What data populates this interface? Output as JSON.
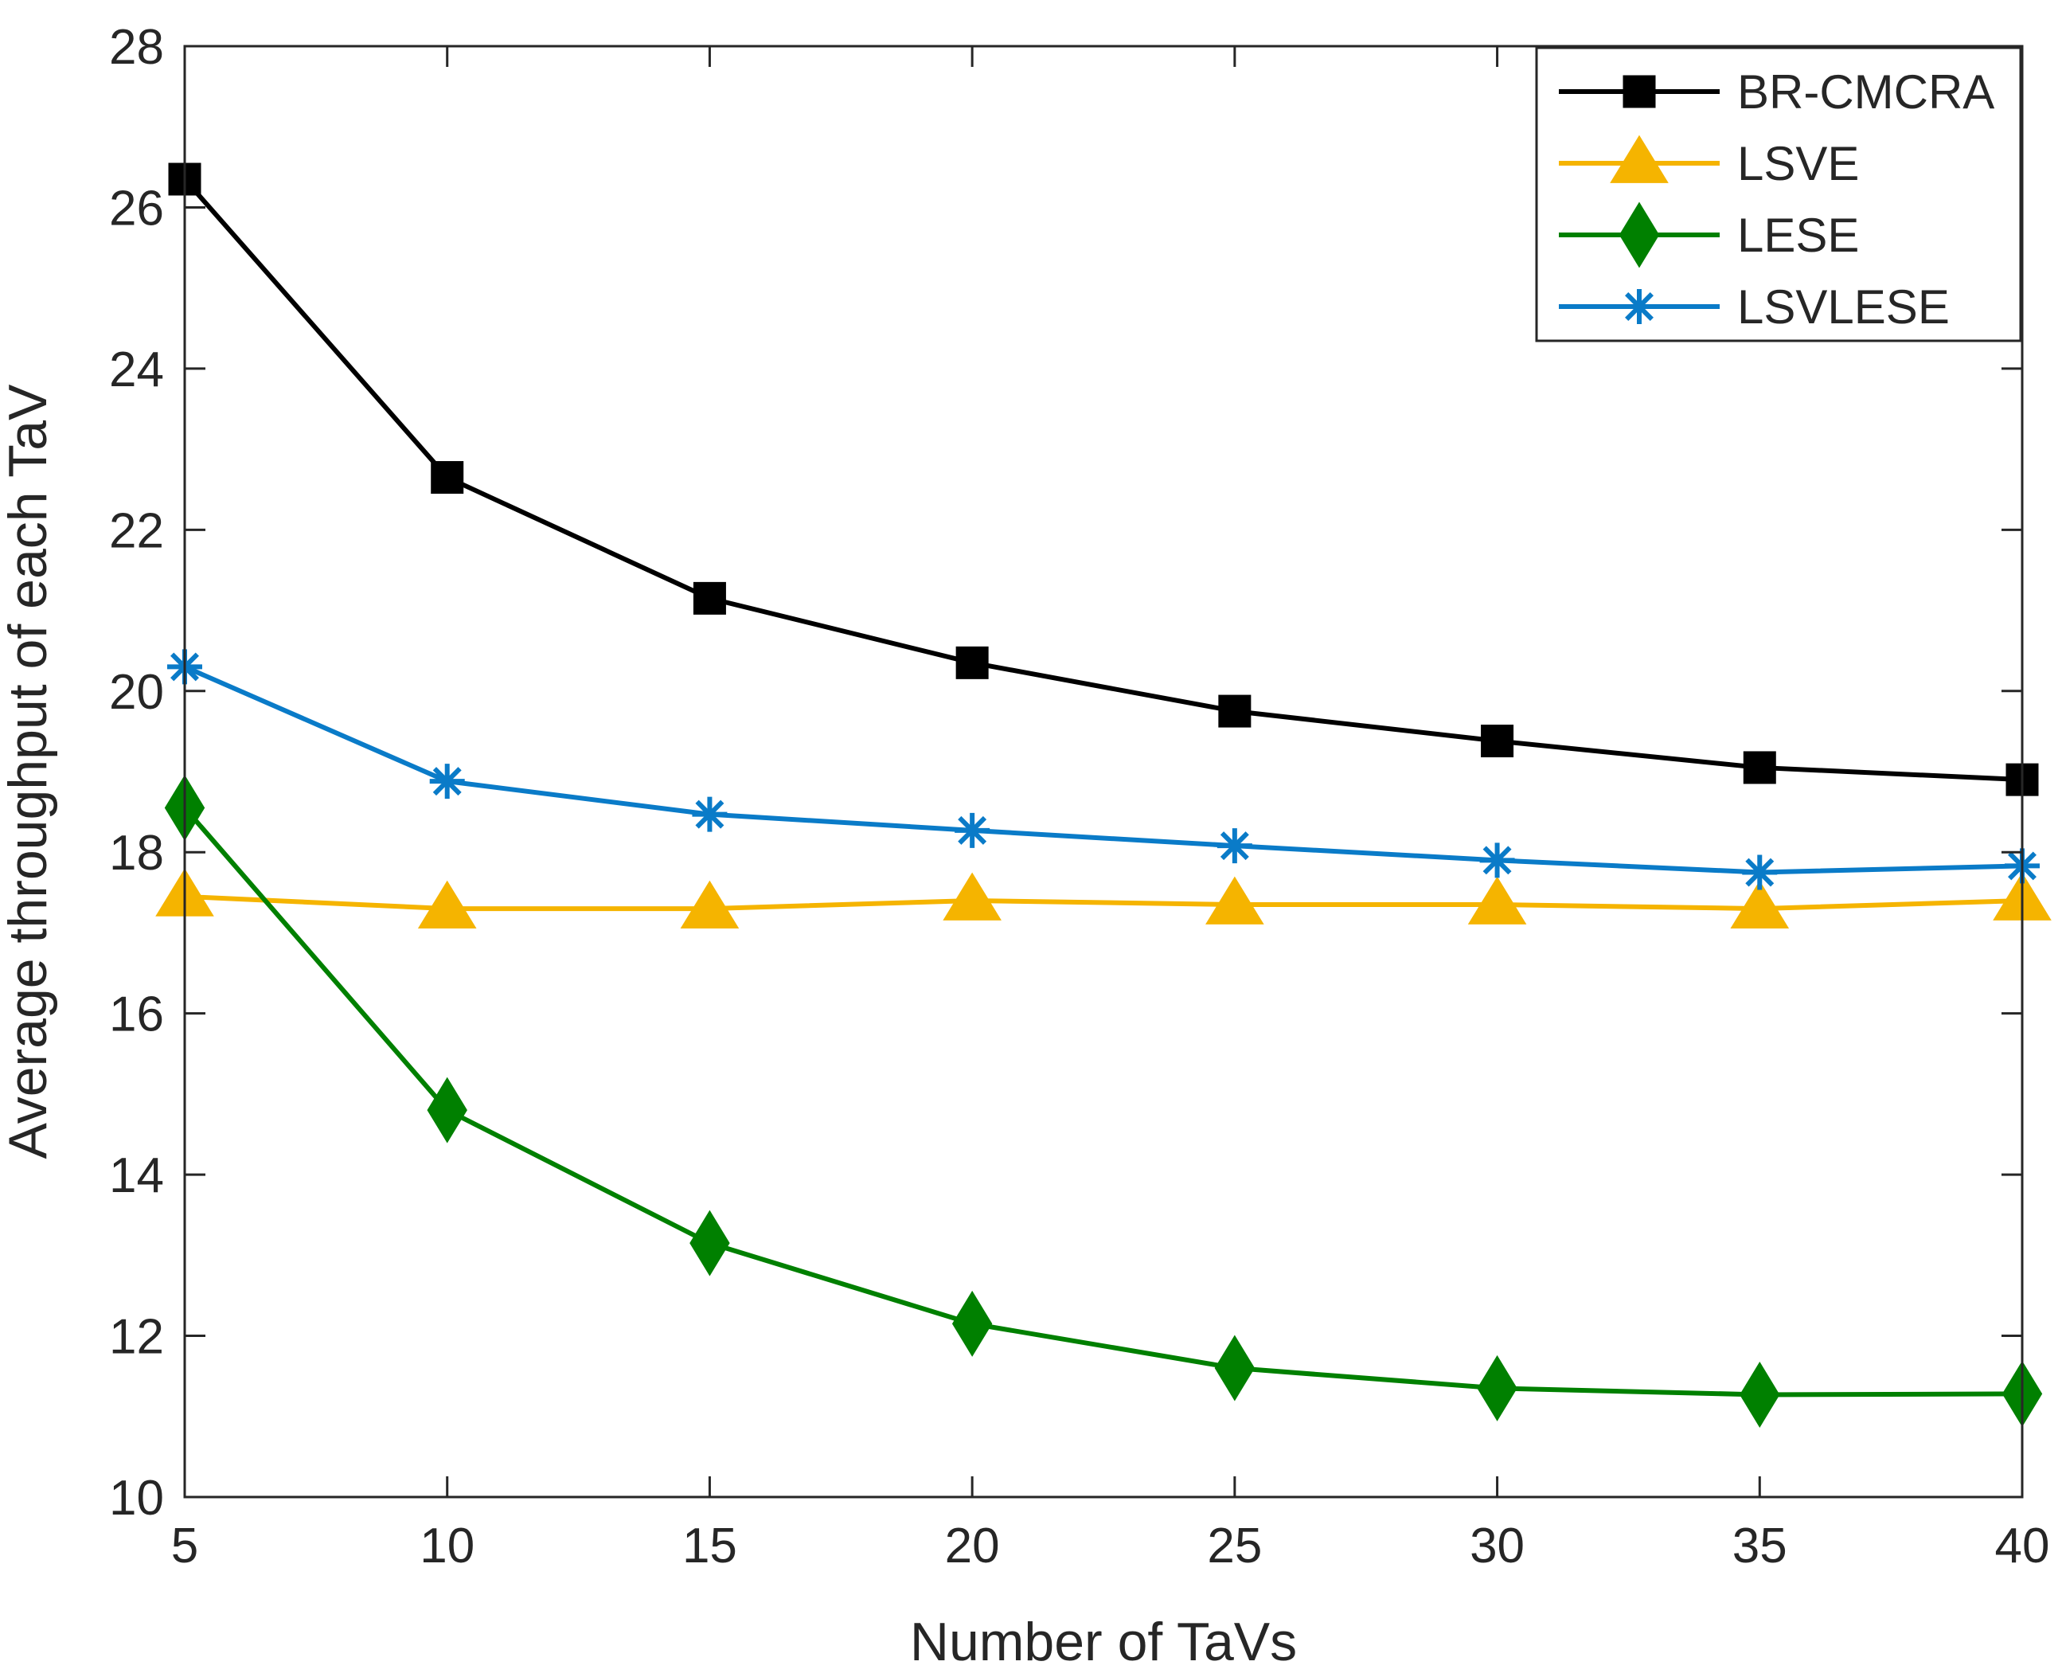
{
  "chart_data": {
    "type": "line",
    "title": "",
    "xlabel": "Number of TaVs",
    "ylabel": "Average throughput of each TaV",
    "x": [
      5,
      10,
      15,
      20,
      25,
      30,
      35,
      40
    ],
    "xlim": [
      5,
      40
    ],
    "ylim": [
      10,
      28
    ],
    "xticks": [
      "5",
      "10",
      "15",
      "20",
      "25",
      "30",
      "35",
      "40"
    ],
    "yticks": [
      "10",
      "12",
      "14",
      "16",
      "18",
      "20",
      "22",
      "24",
      "26",
      "28"
    ],
    "grid": false,
    "legend_position": "top-right",
    "series": [
      {
        "name": "BR-CMCRA",
        "color": "#000000",
        "marker": "square",
        "values": [
          26.35,
          22.65,
          21.15,
          20.35,
          19.75,
          19.38,
          19.05,
          18.9
        ]
      },
      {
        "name": "LSVE",
        "color": "#F5B400",
        "marker": "triangle",
        "values": [
          17.45,
          17.3,
          17.3,
          17.4,
          17.35,
          17.35,
          17.3,
          17.4
        ]
      },
      {
        "name": "LESE",
        "color": "#008000",
        "marker": "diamond",
        "values": [
          18.55,
          14.8,
          13.15,
          12.15,
          11.6,
          11.35,
          11.27,
          11.28
        ]
      },
      {
        "name": "LSVLESE",
        "color": "#0A7BC8",
        "marker": "asterisk",
        "values": [
          20.3,
          18.88,
          18.47,
          18.27,
          18.08,
          17.9,
          17.75,
          17.83
        ]
      }
    ]
  }
}
